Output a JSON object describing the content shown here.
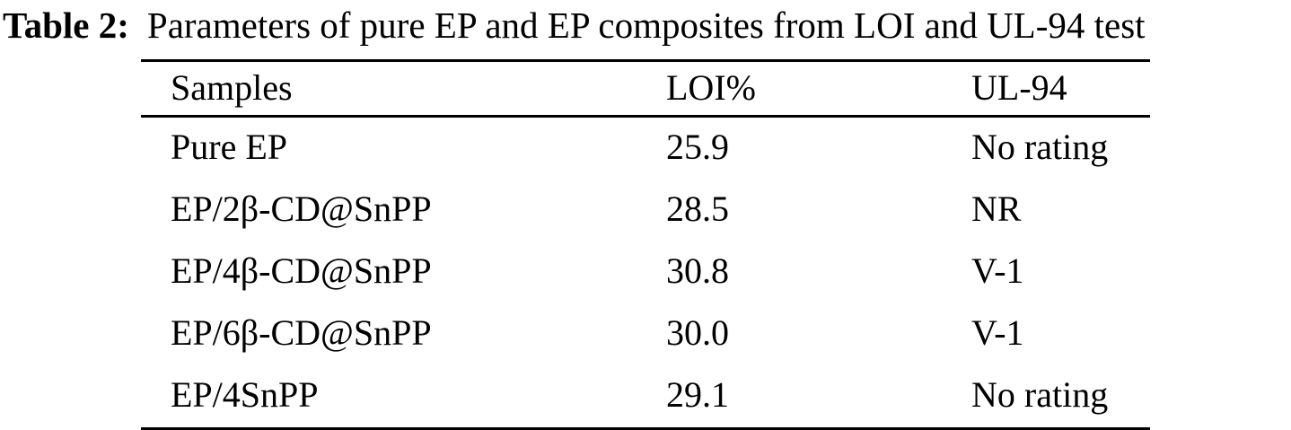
{
  "caption": {
    "label": "Table 2:",
    "text": "Parameters of pure EP and EP composites from LOI and UL-94 test"
  },
  "table": {
    "columns": [
      "Samples",
      "LOI%",
      "UL-94"
    ],
    "rows": [
      {
        "sample": "Pure EP",
        "loi": "25.9",
        "ul94": "No rating"
      },
      {
        "sample": "EP/2β-CD@SnPP",
        "loi": "28.5",
        "ul94": "NR"
      },
      {
        "sample": "EP/4β-CD@SnPP",
        "loi": "30.8",
        "ul94": "V-1"
      },
      {
        "sample": "EP/6β-CD@SnPP",
        "loi": "30.0",
        "ul94": "V-1"
      },
      {
        "sample": "EP/4SnPP",
        "loi": "29.1",
        "ul94": "No rating"
      }
    ]
  },
  "colors": {
    "text": "#000000",
    "background": "#ffffff",
    "rule": "#000000"
  }
}
